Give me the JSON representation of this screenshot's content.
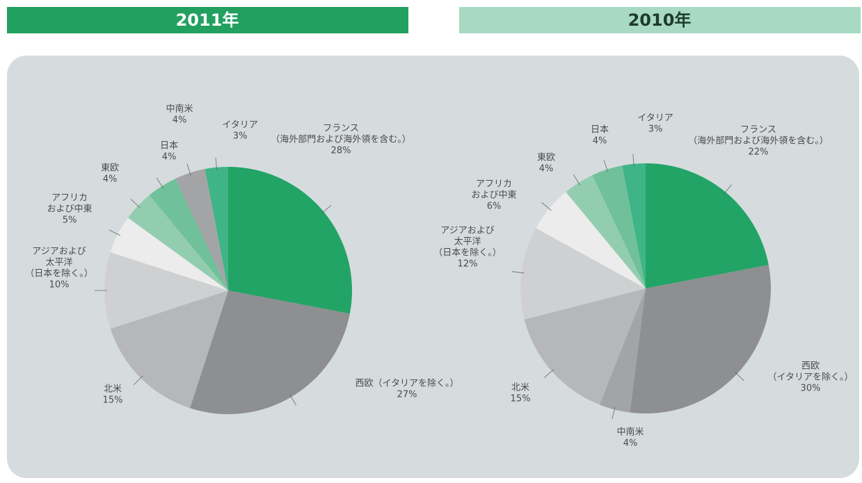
{
  "chart_data": [
    {
      "type": "pie",
      "title": "2011年",
      "categories": [
        [
          "フランス",
          "（海外部門および海外領を含む。）"
        ],
        [
          "西欧（イタリアを除く。）"
        ],
        [
          "北米"
        ],
        [
          "アジアおよび",
          "太平洋",
          "（日本を除く。）"
        ],
        [
          "アフリカ",
          "および中東"
        ],
        [
          "東欧"
        ],
        [
          "日本"
        ],
        [
          "中南米"
        ],
        [
          "イタリア"
        ]
      ],
      "values": [
        28,
        27,
        15,
        10,
        5,
        4,
        4,
        4,
        3
      ],
      "value_labels": [
        "28%",
        "27%",
        "15%",
        "10%",
        "5%",
        "4%",
        "4%",
        "4%",
        "3%"
      ],
      "colors": [
        "#22a467",
        "#8e8f91",
        "#b6b7b9",
        "#cfd0d1",
        "#ececec",
        "#93cdb0",
        "#70c19b",
        "#a3a4a6",
        "#3fb587"
      ]
    },
    {
      "type": "pie",
      "title": "2010年",
      "categories": [
        [
          "フランス",
          "（海外部門および海外領を含む。）"
        ],
        [
          "西欧",
          "（イタリアを除く。）"
        ],
        [
          "中南米"
        ],
        [
          "北米"
        ],
        [
          "アジアおよび",
          "太平洋",
          "（日本を除く。）"
        ],
        [
          "アフリカ",
          "および中東"
        ],
        [
          "東欧"
        ],
        [
          "日本"
        ],
        [
          "イタリア"
        ]
      ],
      "values": [
        22,
        30,
        4,
        15,
        12,
        6,
        4,
        4,
        3
      ],
      "value_labels": [
        "22%",
        "30%",
        "4%",
        "15%",
        "12%",
        "6%",
        "4%",
        "4%",
        "3%"
      ],
      "colors": [
        "#22a467",
        "#8e8f91",
        "#a3a4a6",
        "#b6b7b9",
        "#cfd0d1",
        "#ececec",
        "#93cdb0",
        "#70c19b",
        "#3fb587"
      ]
    }
  ]
}
